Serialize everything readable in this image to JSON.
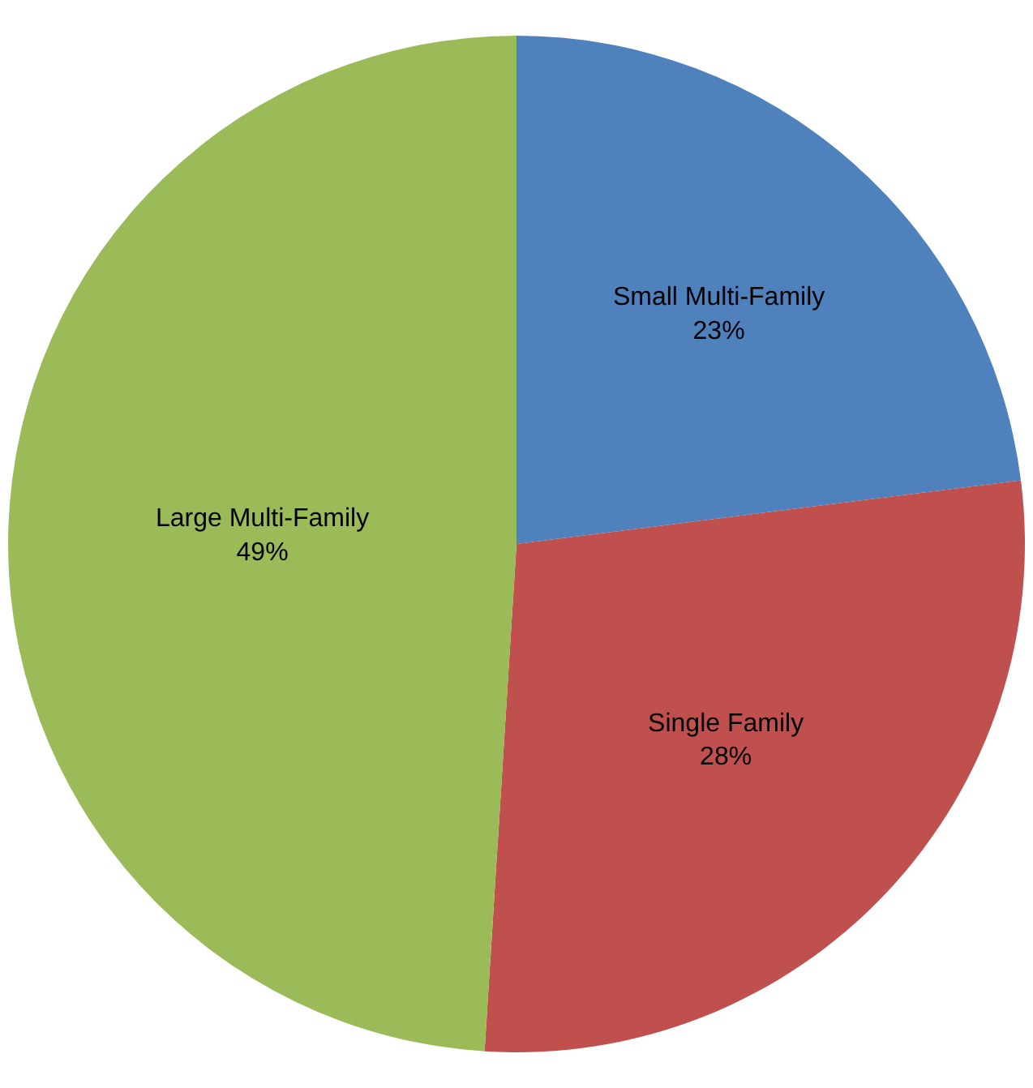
{
  "chart_data": {
    "type": "pie",
    "categories": [
      "Small Multi-Family",
      "Single Family",
      "Large Multi-Family"
    ],
    "values": [
      23,
      28,
      49
    ],
    "value_labels": [
      "23%",
      "28%",
      "49%"
    ],
    "colors": [
      "#4f81bd",
      "#c0504d",
      "#9bbb59"
    ],
    "legend": false
  }
}
